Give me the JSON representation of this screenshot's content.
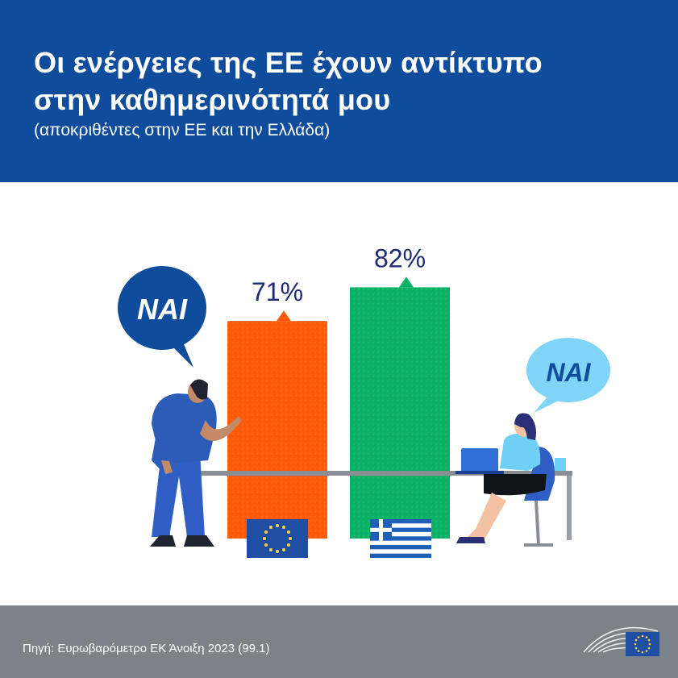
{
  "header": {
    "title_line1": "Οι ενέργειες της ΕΕ έχουν αντίκτυπο",
    "title_line2": "στην καθημερινότητά μου",
    "subtitle": "(αποκριθέντες στην ΕΕ και την Ελλάδα)"
  },
  "speech": {
    "left": "ΝΑΙ",
    "right": "ΝΑΙ"
  },
  "footer": {
    "source": "Πηγή: Ευρωβαρόμετρο ΕΚ Άνοιξη 2023 (99.1)"
  },
  "colors": {
    "header_bg": "#0f4c9c",
    "eu_bar": "#ff5a0a",
    "gr_bar": "#0bb265",
    "label": "#1e2a78",
    "footer_bg": "#7c8388"
  },
  "chart_data": {
    "type": "bar",
    "categories": [
      "EU",
      "Greece"
    ],
    "category_icons": [
      "eu-flag-icon",
      "greece-flag-icon"
    ],
    "values": [
      71,
      82
    ],
    "value_labels": [
      "71%",
      "82%"
    ],
    "ylim": [
      0,
      100
    ],
    "title": "Οι ενέργειες της ΕΕ έχουν αντίκτυπο στην καθημερινότητά μου",
    "xlabel": "",
    "ylabel": "",
    "grid": false
  }
}
